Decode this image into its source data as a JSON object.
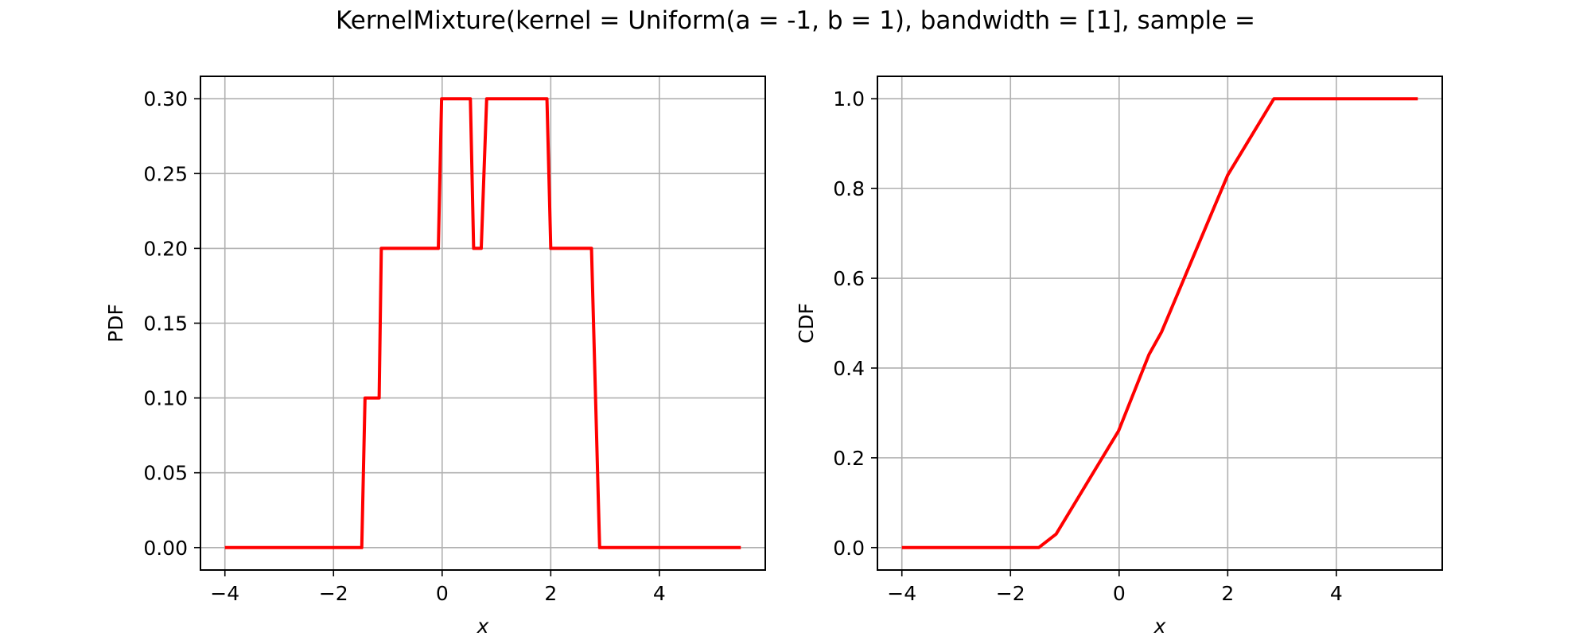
{
  "figure_title": "KernelMixture(kernel = Uniform(a = -1, b = 1), bandwidth = [1], sample =",
  "colors": {
    "line": "#ff0000",
    "grid": "#b0b0b0",
    "axes": "#000000"
  },
  "chart_data": [
    {
      "type": "line",
      "title": "",
      "xlabel": "x",
      "ylabel": "PDF",
      "xlim": [
        -4.45,
        5.95
      ],
      "ylim": [
        -0.015,
        0.315
      ],
      "xticks": [
        -4,
        -2,
        0,
        2,
        4
      ],
      "xtick_labels": [
        "−4",
        "−2",
        "0",
        "2",
        "4"
      ],
      "yticks": [
        0.0,
        0.05,
        0.1,
        0.15,
        0.2,
        0.25,
        0.3
      ],
      "ytick_labels": [
        "0.00",
        "0.05",
        "0.10",
        "0.15",
        "0.20",
        "0.25",
        "0.30"
      ],
      "grid": true,
      "series": [
        {
          "color": "#ff0000",
          "x": [
            -4.0,
            -1.48,
            -1.42,
            -1.16,
            -1.12,
            -0.07,
            -0.01,
            0.52,
            0.58,
            0.72,
            0.82,
            1.93,
            2.0,
            2.75,
            2.9,
            5.5
          ],
          "y": [
            0.0,
            0.0,
            0.1,
            0.1,
            0.2,
            0.2,
            0.3,
            0.3,
            0.2,
            0.2,
            0.3,
            0.3,
            0.2,
            0.2,
            0.0,
            0.0
          ]
        }
      ]
    },
    {
      "type": "line",
      "title": "",
      "xlabel": "x",
      "ylabel": "CDF",
      "xlim": [
        -4.45,
        5.95
      ],
      "ylim": [
        -0.05,
        1.05
      ],
      "xticks": [
        -4,
        -2,
        0,
        2,
        4
      ],
      "xtick_labels": [
        "−4",
        "−2",
        "0",
        "2",
        "4"
      ],
      "yticks": [
        0.0,
        0.2,
        0.4,
        0.6,
        0.8,
        1.0
      ],
      "ytick_labels": [
        "0.0",
        "0.2",
        "0.4",
        "0.6",
        "0.8",
        "1.0"
      ],
      "grid": true,
      "series": [
        {
          "color": "#ff0000",
          "x": [
            -4.0,
            -1.48,
            -1.16,
            -0.01,
            0.55,
            0.78,
            2.0,
            2.85,
            5.5
          ],
          "y": [
            0.0,
            0.0,
            0.03,
            0.26,
            0.43,
            0.48,
            0.83,
            1.0,
            1.0
          ]
        }
      ]
    }
  ]
}
